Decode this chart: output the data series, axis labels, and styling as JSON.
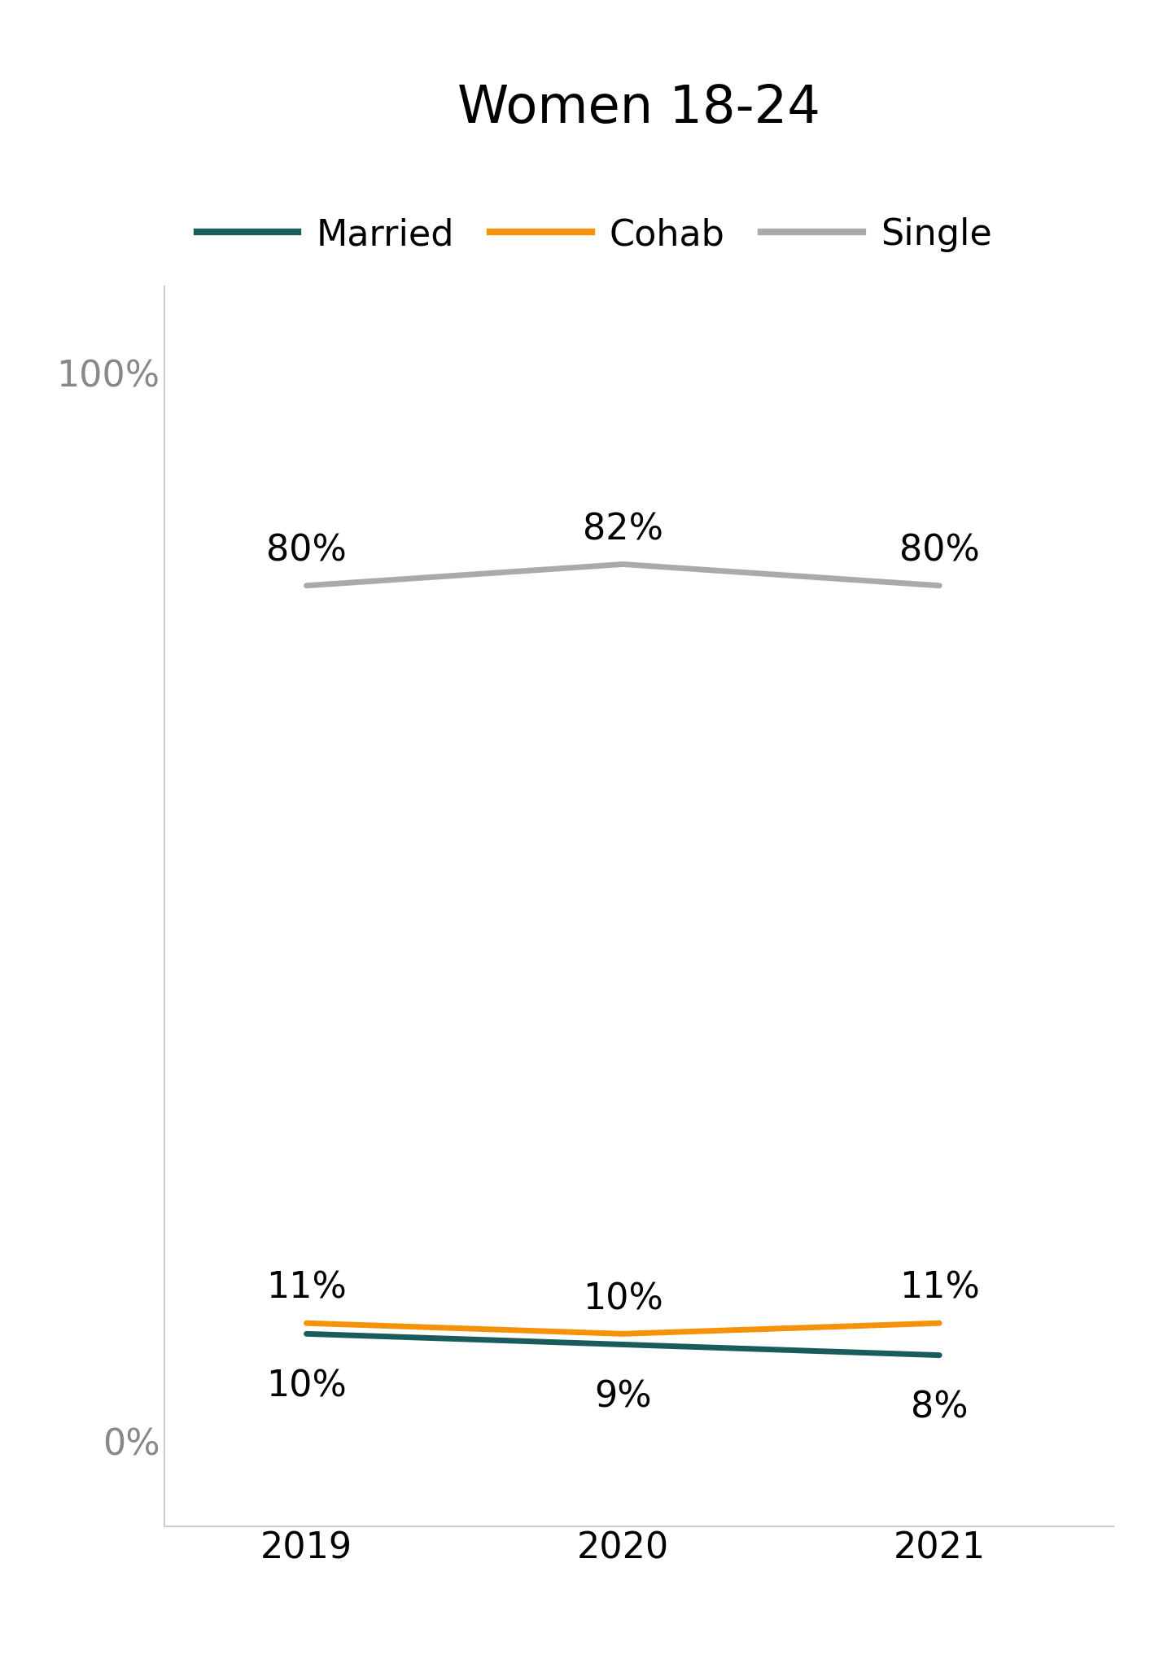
{
  "title": "Women 18-24",
  "years": [
    2019,
    2020,
    2021
  ],
  "married": [
    10,
    9,
    8
  ],
  "cohab": [
    11,
    10,
    11
  ],
  "single": [
    80,
    82,
    80
  ],
  "married_color": "#1a5c5c",
  "cohab_color": "#f5920a",
  "single_color": "#aaaaaa",
  "married_label": "Married",
  "cohab_label": "Cohab",
  "single_label": "Single",
  "yticks": [
    0,
    100
  ],
  "ytick_labels": [
    "0%",
    "100%"
  ],
  "background_color": "#ffffff",
  "title_fontsize": 46,
  "tick_fontsize": 32,
  "legend_fontsize": 32,
  "annotation_fontsize": 32,
  "line_width": 5
}
